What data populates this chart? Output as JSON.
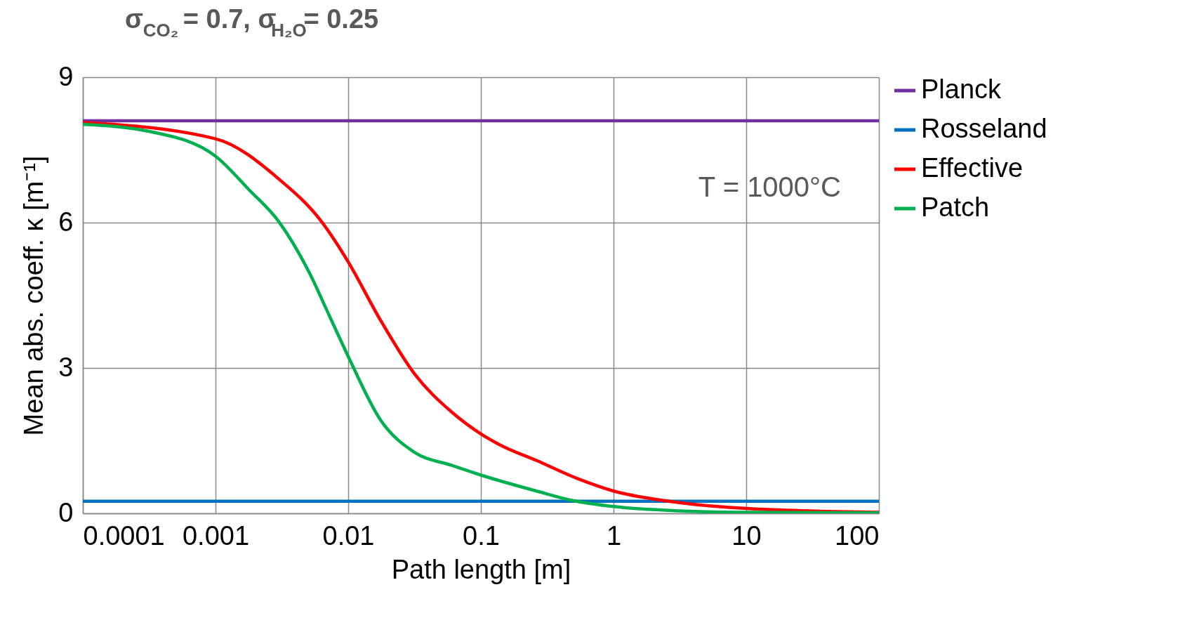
{
  "chart_data": {
    "type": "line",
    "title": "σ$_{CO₂}$ = 0.7, σ$_{H₂O}$= 0.25",
    "xlabel": "Path length [m]",
    "ylabel": "Mean abs. coeff. κ [m⁻¹]",
    "annotations": [
      "T = 1000°C"
    ],
    "log": "x",
    "xlim": [
      0.0001,
      100
    ],
    "xticks": [
      0.0001,
      0.001,
      0.01,
      0.1,
      1,
      10,
      100
    ],
    "ylim": [
      0,
      9
    ],
    "yticks": [
      0,
      3,
      6,
      9
    ],
    "grid": true,
    "legend": "right",
    "line_style": "solid",
    "marker": "none",
    "series": [
      {
        "name": "Planck",
        "color": "#7030a0",
        "x": [
          0.0001,
          100
        ],
        "values": [
          8.1,
          8.1
        ]
      },
      {
        "name": "Rosseland",
        "color": "#0070c0",
        "x": [
          0.0001,
          100
        ],
        "values": [
          0.25,
          0.25
        ]
      },
      {
        "name": "Effective",
        "color": "#ff0000",
        "x": [
          0.0001,
          0.001,
          0.003,
          0.0063,
          0.01,
          0.0174,
          0.0316,
          0.0603,
          0.1,
          0.14,
          0.263,
          0.555,
          1,
          2.45,
          10,
          100
        ],
        "values": [
          8.07,
          7.73,
          6.9,
          6.02,
          5.19,
          4.0,
          2.88,
          2.09,
          1.64,
          1.41,
          1.09,
          0.7,
          0.46,
          0.26,
          0.1,
          0.02
        ]
      },
      {
        "name": "Patch",
        "color": "#00b050",
        "x": [
          0.0001,
          0.00032,
          0.001,
          0.0018,
          0.003,
          0.005,
          0.0074,
          0.01,
          0.0174,
          0.0316,
          0.0603,
          0.1,
          0.263,
          0.5,
          1,
          3.16,
          10,
          100
        ],
        "values": [
          8.03,
          7.88,
          7.37,
          6.67,
          6.02,
          5.01,
          4.01,
          3.24,
          1.94,
          1.26,
          0.99,
          0.79,
          0.46,
          0.26,
          0.14,
          0.05,
          0.02,
          0.01
        ]
      }
    ]
  }
}
